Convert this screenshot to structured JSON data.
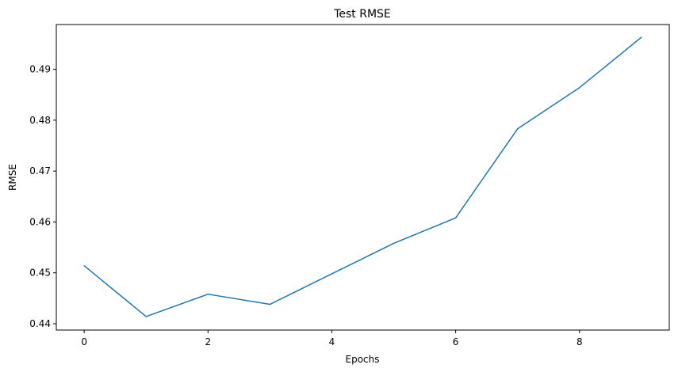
{
  "chart_data": {
    "type": "line",
    "title": "Test RMSE",
    "xlabel": "Epochs",
    "ylabel": "RMSE",
    "xlim": [
      -0.45,
      9.45
    ],
    "ylim": [
      0.43875,
      0.4988
    ],
    "xticks": [
      0,
      2,
      4,
      6,
      8
    ],
    "yticks": [
      0.44,
      0.45,
      0.46,
      0.47,
      0.48,
      0.49
    ],
    "xtick_labels": [
      "0",
      "2",
      "4",
      "6",
      "8"
    ],
    "ytick_labels": [
      "0.44",
      "0.45",
      "0.46",
      "0.47",
      "0.48",
      "0.49"
    ],
    "grid": false,
    "series": [
      {
        "color": "#1f77b4",
        "x": [
          0,
          1,
          2,
          3,
          4,
          5,
          6,
          7,
          8,
          9
        ],
        "y": [
          0.4514,
          0.4414,
          0.4458,
          0.4438,
          0.4498,
          0.4558,
          0.4608,
          0.4783,
          0.4864,
          0.4963
        ]
      }
    ]
  }
}
